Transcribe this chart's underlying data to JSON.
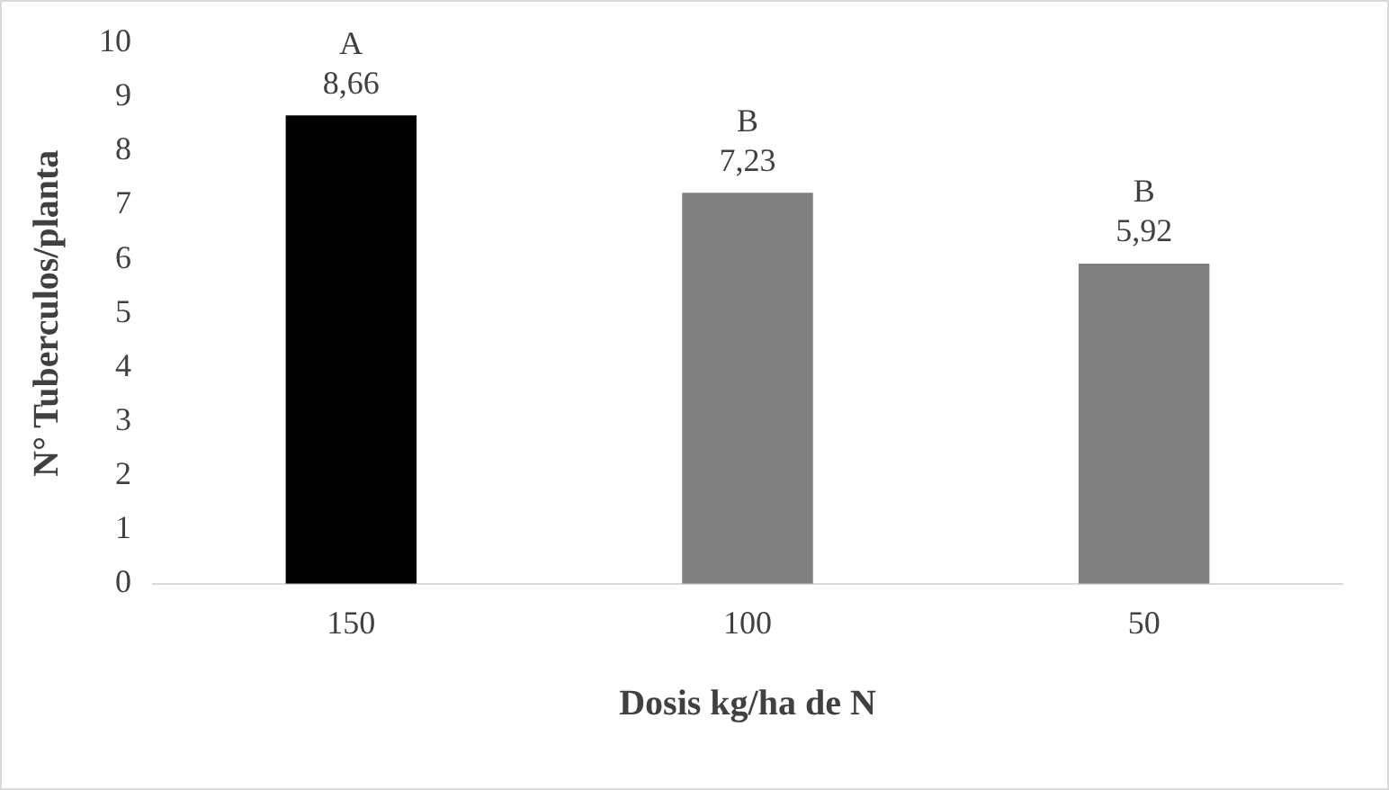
{
  "chart_data": {
    "type": "bar",
    "xlabel": "Dosis kg/ha de N",
    "ylabel": "N° Tuberculos/planta",
    "categories": [
      "150",
      "100",
      "50"
    ],
    "values": [
      8.66,
      7.23,
      5.92
    ],
    "colors": [
      "#000000",
      "#7f7f7f",
      "#7f7f7f"
    ],
    "value_labels": [
      "8,66",
      "7,23",
      "5,92"
    ],
    "annotations": [
      {
        "text": "A",
        "x": "150",
        "y": 8.66
      },
      {
        "text": "B",
        "x": "100",
        "y": 7.23
      },
      {
        "text": "B",
        "x": "50",
        "y": 5.92
      }
    ],
    "ylim": [
      0,
      10
    ],
    "yticks": [
      0,
      1,
      2,
      3,
      4,
      5,
      6,
      7,
      8,
      9,
      10
    ],
    "grid": false,
    "legend": false
  }
}
